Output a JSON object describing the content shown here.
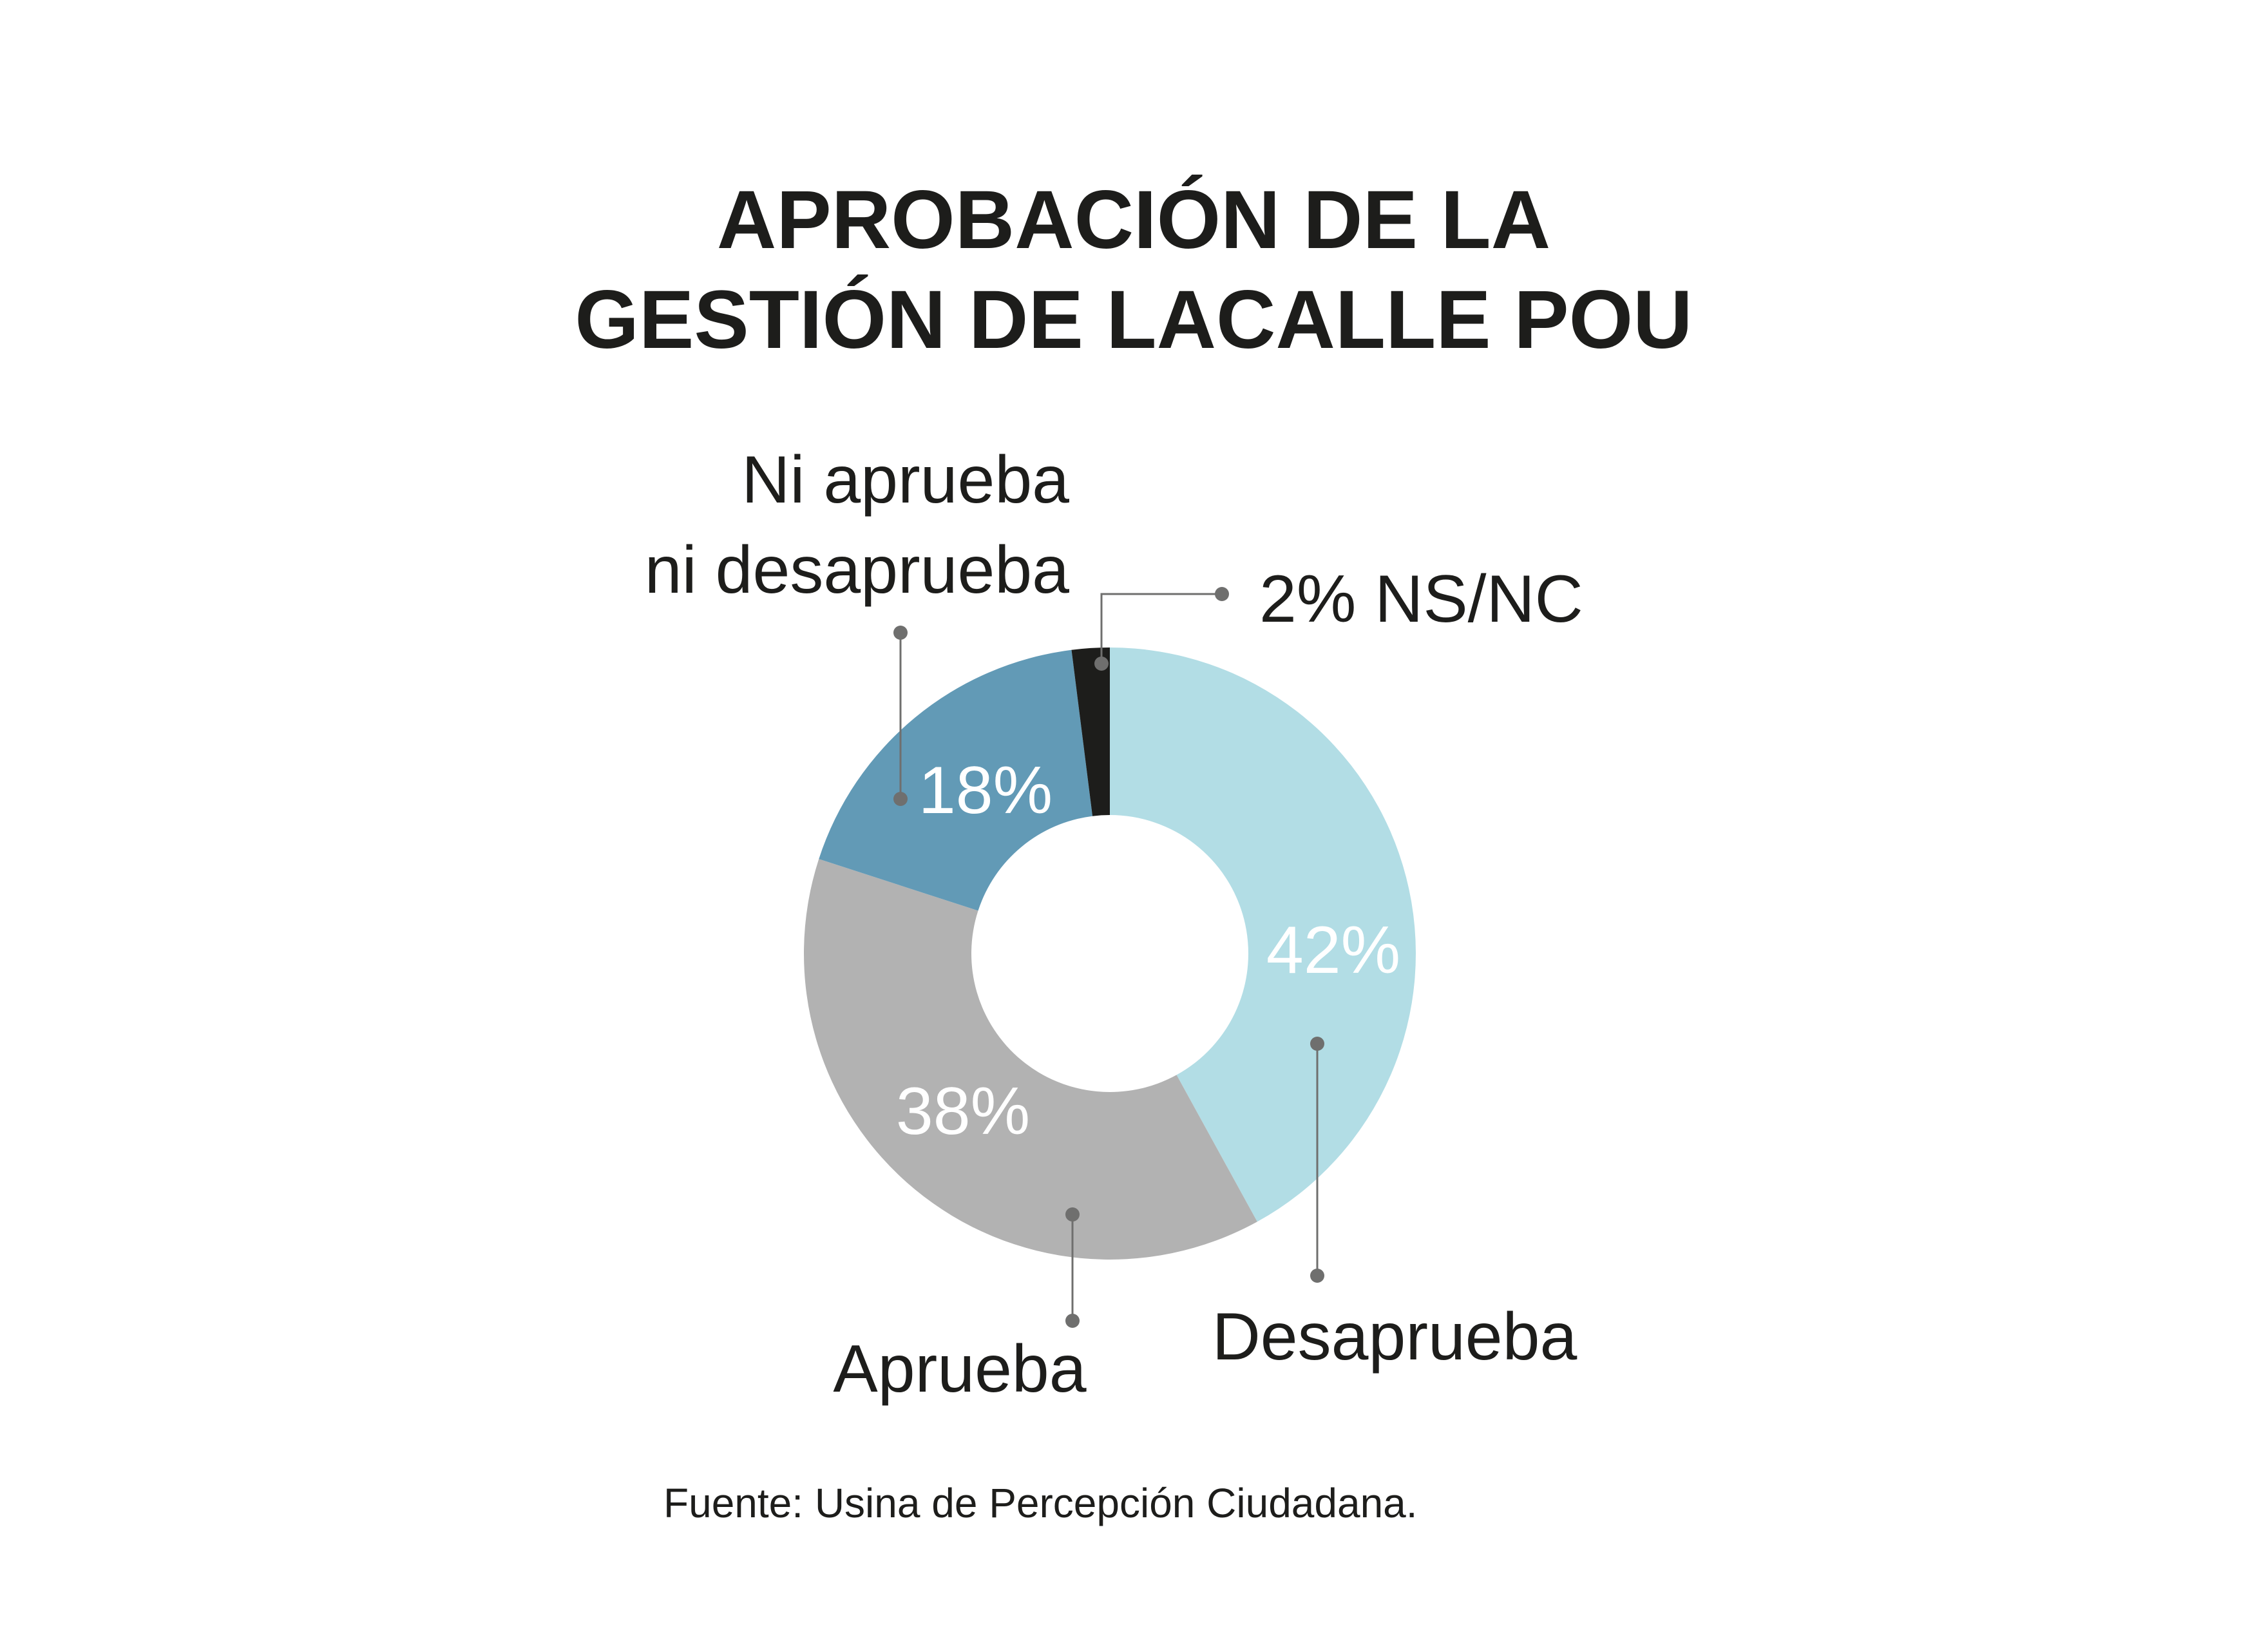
{
  "chart_data": {
    "type": "pie",
    "title_lines": [
      "APROBACIÓN DE LA",
      "GESTIÓN DE LACALLE POU"
    ],
    "slices": [
      {
        "label_lines": [
          "Desaprueba"
        ],
        "value": 42,
        "value_label": "42%",
        "color": "#b2dde5"
      },
      {
        "label_lines": [
          "Aprueba"
        ],
        "value": 38,
        "value_label": "38%",
        "color": "#b2b2b2"
      },
      {
        "label_lines": [
          "Ni aprueba",
          "ni desaprueba"
        ],
        "value": 18,
        "value_label": "18%",
        "color": "#629ab6"
      },
      {
        "label_lines": [
          "2% NS/NC"
        ],
        "value": 2,
        "value_label": "",
        "color": "#1d1d1b"
      }
    ],
    "style": "donut",
    "source": "Fuente: Usina de Percepción Ciudadana."
  },
  "colors": {
    "text": "#1d1d1b",
    "leader": "#6f6f6e",
    "background": "#ffffff"
  }
}
